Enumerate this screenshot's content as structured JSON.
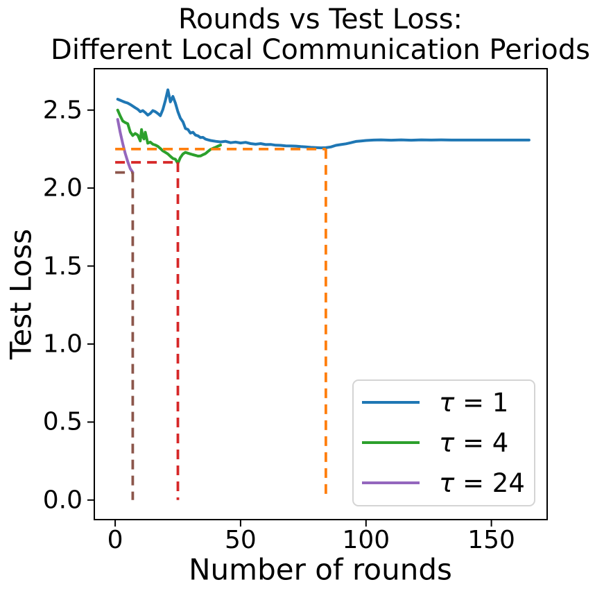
{
  "title": {
    "line1": "Rounds vs Test Loss:",
    "line2": "Different Local Communication Periods"
  },
  "chart_data": {
    "type": "line",
    "title": "Rounds vs Test Loss: Different Local Communication Periods",
    "xlabel": "Number of rounds",
    "ylabel": "Test Loss",
    "xlim": [
      -8.6,
      172.5
    ],
    "ylim": [
      -0.13,
      2.77
    ],
    "grid": false,
    "legend_position": "lower-right-inside",
    "xticks": [
      {
        "label": "0",
        "value": 0
      },
      {
        "label": "50",
        "value": 50
      },
      {
        "label": "100",
        "value": 100
      },
      {
        "label": "150",
        "value": 150
      }
    ],
    "yticks": [
      {
        "label": "0.0",
        "value": 0.0
      },
      {
        "label": "0.5",
        "value": 0.5
      },
      {
        "label": "1.0",
        "value": 1.0
      },
      {
        "label": "1.5",
        "value": 1.5
      },
      {
        "label": "2.0",
        "value": 2.0
      },
      {
        "label": "2.5",
        "value": 2.5
      }
    ],
    "series": [
      {
        "name": "tau = 1",
        "color": "#1f77b4",
        "style": "solid",
        "points": [
          [
            1,
            2.57
          ],
          [
            2,
            2.563
          ],
          [
            3,
            2.556
          ],
          [
            4,
            2.55
          ],
          [
            5,
            2.545
          ],
          [
            6,
            2.536
          ],
          [
            7,
            2.526
          ],
          [
            8,
            2.515
          ],
          [
            9,
            2.505
          ],
          [
            10,
            2.49
          ],
          [
            11,
            2.497
          ],
          [
            12,
            2.484
          ],
          [
            13,
            2.468
          ],
          [
            14,
            2.478
          ],
          [
            15,
            2.497
          ],
          [
            16,
            2.49
          ],
          [
            17,
            2.478
          ],
          [
            18,
            2.464
          ],
          [
            19,
            2.503
          ],
          [
            20,
            2.56
          ],
          [
            21,
            2.63
          ],
          [
            22,
            2.553
          ],
          [
            23,
            2.588
          ],
          [
            24,
            2.545
          ],
          [
            25,
            2.49
          ],
          [
            26,
            2.448
          ],
          [
            27,
            2.425
          ],
          [
            28,
            2.382
          ],
          [
            29,
            2.376
          ],
          [
            30,
            2.353
          ],
          [
            31,
            2.358
          ],
          [
            32,
            2.34
          ],
          [
            33,
            2.335
          ],
          [
            34,
            2.324
          ],
          [
            35,
            2.325
          ],
          [
            36,
            2.314
          ],
          [
            37,
            2.309
          ],
          [
            38,
            2.305
          ],
          [
            40,
            2.3
          ],
          [
            42,
            2.296
          ],
          [
            44,
            2.3
          ],
          [
            46,
            2.291
          ],
          [
            48,
            2.295
          ],
          [
            50,
            2.289
          ],
          [
            52,
            2.293
          ],
          [
            54,
            2.285
          ],
          [
            56,
            2.281
          ],
          [
            58,
            2.285
          ],
          [
            60,
            2.279
          ],
          [
            62,
            2.28
          ],
          [
            64,
            2.275
          ],
          [
            66,
            2.274
          ],
          [
            68,
            2.271
          ],
          [
            70,
            2.27
          ],
          [
            72,
            2.269
          ],
          [
            74,
            2.266
          ],
          [
            76,
            2.264
          ],
          [
            78,
            2.261
          ],
          [
            80,
            2.26
          ],
          [
            82,
            2.258
          ],
          [
            84,
            2.259
          ],
          [
            86,
            2.264
          ],
          [
            88,
            2.274
          ],
          [
            90,
            2.279
          ],
          [
            92,
            2.284
          ],
          [
            94,
            2.291
          ],
          [
            96,
            2.299
          ],
          [
            98,
            2.302
          ],
          [
            100,
            2.305
          ],
          [
            103,
            2.308
          ],
          [
            106,
            2.309
          ],
          [
            110,
            2.307
          ],
          [
            114,
            2.309
          ],
          [
            118,
            2.307
          ],
          [
            122,
            2.309
          ],
          [
            126,
            2.308
          ],
          [
            130,
            2.309
          ],
          [
            134,
            2.308
          ],
          [
            138,
            2.308
          ],
          [
            142,
            2.308
          ],
          [
            146,
            2.308
          ],
          [
            150,
            2.308
          ],
          [
            155,
            2.308
          ],
          [
            160,
            2.308
          ],
          [
            165,
            2.308
          ]
        ]
      },
      {
        "name": "tau = 4",
        "color": "#2ca02c",
        "style": "solid",
        "points": [
          [
            1,
            2.5
          ],
          [
            2,
            2.463
          ],
          [
            3,
            2.43
          ],
          [
            4,
            2.42
          ],
          [
            5,
            2.413
          ],
          [
            6,
            2.36
          ],
          [
            7,
            2.337
          ],
          [
            8,
            2.35
          ],
          [
            9,
            2.34
          ],
          [
            10,
            2.302
          ],
          [
            10.5,
            2.375
          ],
          [
            11,
            2.33
          ],
          [
            11.5,
            2.315
          ],
          [
            12,
            2.358
          ],
          [
            13,
            2.288
          ],
          [
            14,
            2.295
          ],
          [
            15,
            2.281
          ],
          [
            16,
            2.276
          ],
          [
            17,
            2.268
          ],
          [
            18,
            2.254
          ],
          [
            19,
            2.239
          ],
          [
            20,
            2.229
          ],
          [
            21,
            2.219
          ],
          [
            22,
            2.204
          ],
          [
            23,
            2.19
          ],
          [
            24,
            2.185
          ],
          [
            25,
            2.159
          ],
          [
            26,
            2.196
          ],
          [
            27,
            2.219
          ],
          [
            28,
            2.229
          ],
          [
            29,
            2.224
          ],
          [
            30,
            2.219
          ],
          [
            31,
            2.214
          ],
          [
            32,
            2.21
          ],
          [
            33,
            2.205
          ],
          [
            34,
            2.206
          ],
          [
            35,
            2.214
          ],
          [
            36,
            2.221
          ],
          [
            37,
            2.235
          ],
          [
            38,
            2.248
          ],
          [
            39,
            2.255
          ],
          [
            40,
            2.261
          ],
          [
            41,
            2.269
          ],
          [
            42,
            2.276
          ]
        ]
      },
      {
        "name": "tau = 24",
        "color": "#9467bd",
        "style": "solid",
        "points": [
          [
            1,
            2.44
          ],
          [
            2,
            2.358
          ],
          [
            3,
            2.285
          ],
          [
            4,
            2.222
          ],
          [
            5,
            2.17
          ],
          [
            6,
            2.125
          ],
          [
            7,
            2.101
          ]
        ]
      }
    ],
    "annotations": [
      {
        "name": "orange-dashed",
        "color": "#ff7f0e",
        "style": "dashed",
        "hline_y": 2.25,
        "hline_x_range": [
          0,
          84
        ],
        "vline_x": 84,
        "vline_y_range": [
          0,
          2.25
        ]
      },
      {
        "name": "red-dashed",
        "color": "#d62728",
        "style": "dashed",
        "hline_y": 2.165,
        "hline_x_range": [
          0,
          25
        ],
        "vline_x": 25,
        "vline_y_range": [
          0,
          2.165
        ]
      },
      {
        "name": "brown-dashed",
        "color": "#8c564b",
        "style": "dashed",
        "hline_y": 2.1,
        "hline_x_range": [
          0,
          7
        ],
        "vline_x": 7,
        "vline_y_range": [
          0,
          2.1
        ]
      }
    ],
    "legend": [
      {
        "symbol": "τ",
        "text": " = 1",
        "color": "#1f77b4"
      },
      {
        "symbol": "τ",
        "text": " = 4",
        "color": "#2ca02c"
      },
      {
        "symbol": "τ",
        "text": " = 24",
        "color": "#9467bd"
      }
    ]
  }
}
